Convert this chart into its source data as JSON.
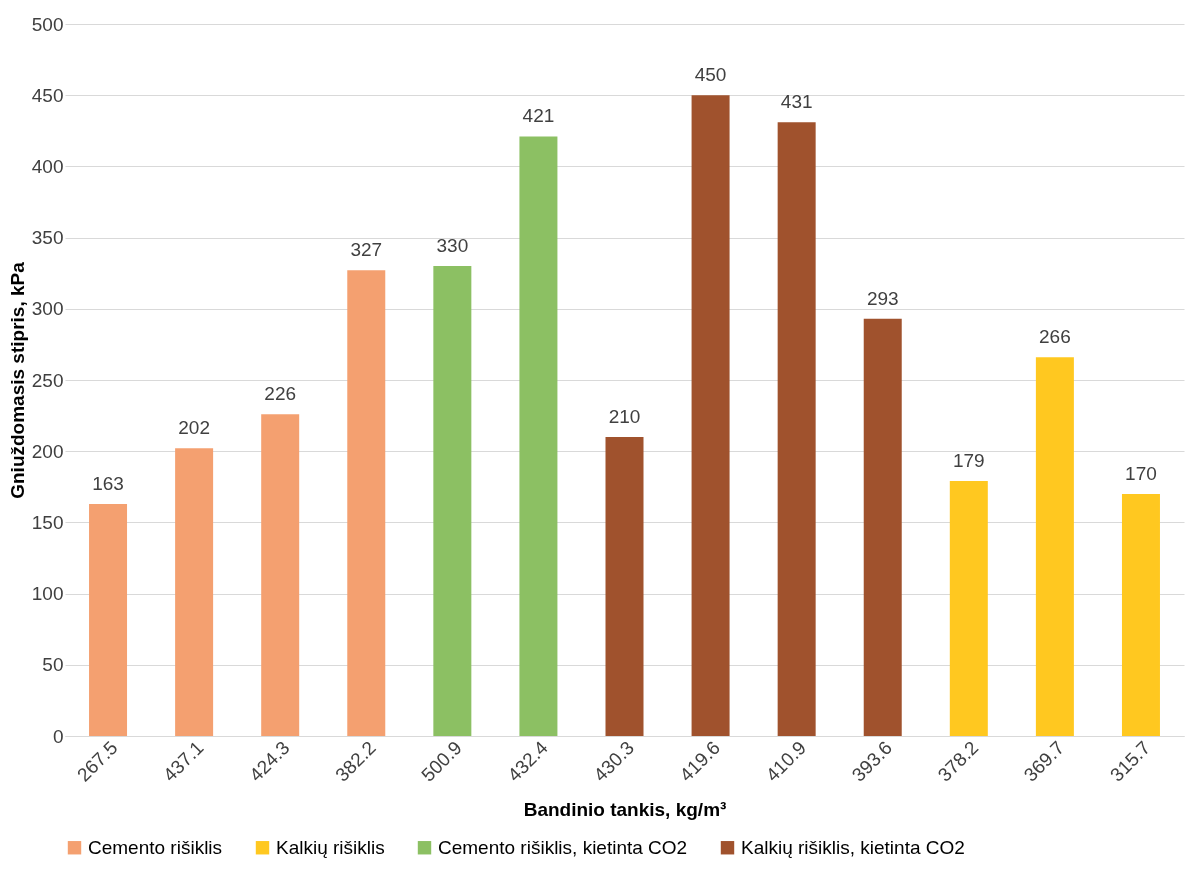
{
  "chart_data": {
    "type": "bar",
    "xlabel": "Bandinio tankis, kg/m³",
    "ylabel": "Gniuždomasis stipris, kPa",
    "categories": [
      "267.5",
      "437.1",
      "424.3",
      "382.2",
      "500.9",
      "432.4",
      "430.3",
      "419.6",
      "410.9",
      "393.6",
      "378.2",
      "369.7",
      "315.7"
    ],
    "series": [
      {
        "name": "Cemento rišiklis",
        "color": "#f4a070",
        "values": [
          163,
          202,
          226,
          327,
          null,
          null,
          null,
          null,
          null,
          null,
          null,
          null,
          null
        ]
      },
      {
        "name": "Kalkių rišiklis",
        "color": "#ffc820",
        "values": [
          null,
          null,
          null,
          null,
          null,
          null,
          null,
          null,
          null,
          null,
          179,
          266,
          170
        ]
      },
      {
        "name": "Cemento rišiklis, kietinta CO2",
        "color": "#8cc063",
        "values": [
          null,
          null,
          null,
          null,
          330,
          421,
          null,
          null,
          null,
          null,
          null,
          null,
          null
        ]
      },
      {
        "name": "Kalkių rišiklis, kietinta CO2",
        "color": "#a0522d",
        "values": [
          null,
          null,
          null,
          null,
          null,
          null,
          210,
          450,
          431,
          293,
          null,
          null,
          null
        ]
      }
    ],
    "ylim": [
      0,
      500
    ],
    "yticks": [
      0,
      50,
      100,
      150,
      200,
      250,
      300,
      350,
      400,
      450,
      500
    ],
    "grid": "y",
    "legend": "bottom",
    "data_labels": true
  }
}
